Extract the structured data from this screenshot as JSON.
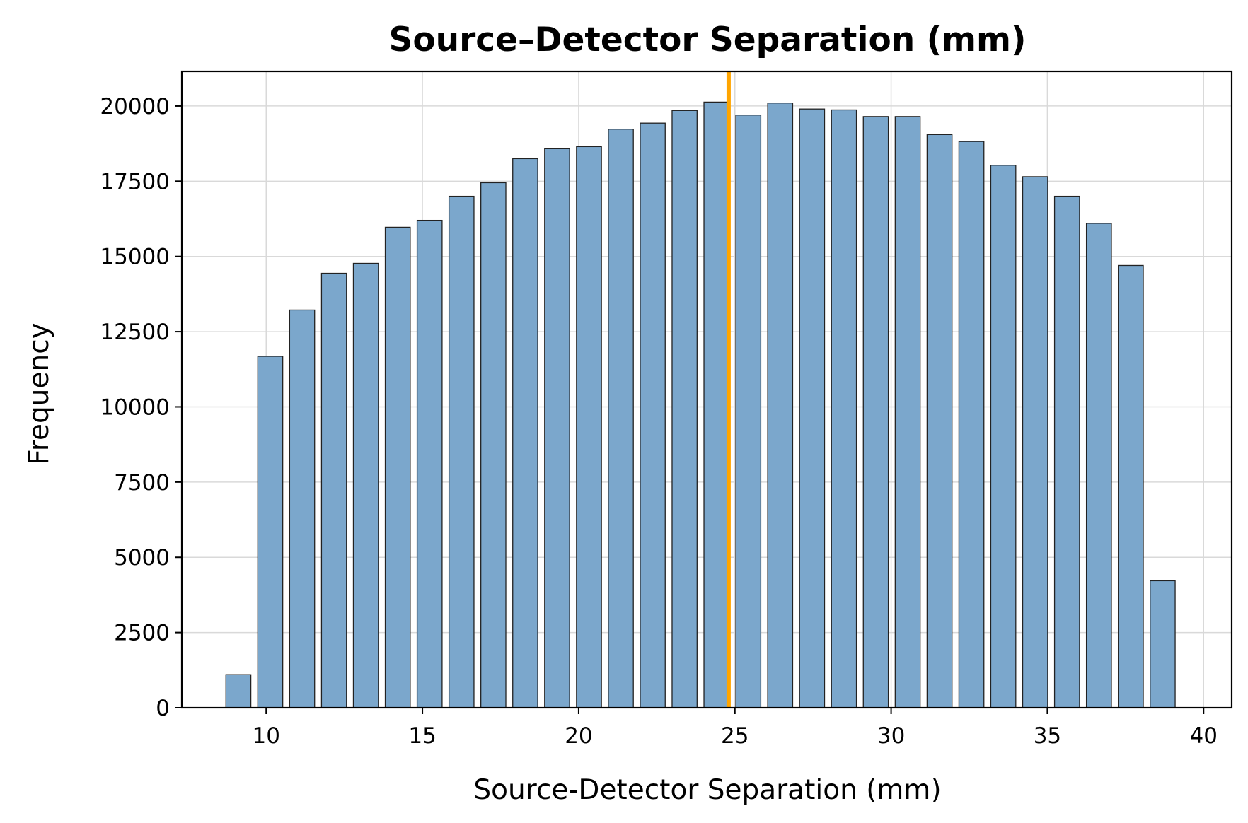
{
  "chart_data": {
    "type": "bar",
    "title": "Source–Detector Separation (mm)",
    "xlabel": "Source-Detector Separation (mm)",
    "ylabel": "Frequency",
    "xlim": [
      7.3,
      40.9
    ],
    "ylim": [
      0,
      21150
    ],
    "xticks": [
      10,
      15,
      20,
      25,
      30,
      35,
      40
    ],
    "yticks": [
      0,
      2500,
      5000,
      7500,
      10000,
      12500,
      15000,
      17500,
      20000
    ],
    "grid": true,
    "bar_width": 0.8,
    "bar_color": "#7ba7cc",
    "bar_edge_color": "#222222",
    "x": [
      9.11,
      10.13,
      11.15,
      12.17,
      13.19,
      14.21,
      15.23,
      16.25,
      17.27,
      18.29,
      19.31,
      20.33,
      21.35,
      22.37,
      23.39,
      24.41,
      25.43,
      26.45,
      27.47,
      28.49,
      29.51,
      30.53,
      31.55,
      32.57,
      33.59,
      34.61,
      35.63,
      36.65,
      37.67,
      38.69
    ],
    "values": [
      1100,
      11680,
      13220,
      14440,
      14770,
      15970,
      16200,
      17000,
      17450,
      18250,
      18580,
      18650,
      19230,
      19430,
      19850,
      20130,
      19700,
      20100,
      19900,
      19870,
      19650,
      19650,
      19050,
      18820,
      18030,
      17650,
      17000,
      16100,
      14700,
      4220
    ],
    "reference_line": {
      "x": 24.8,
      "color": "#ffa500"
    }
  }
}
